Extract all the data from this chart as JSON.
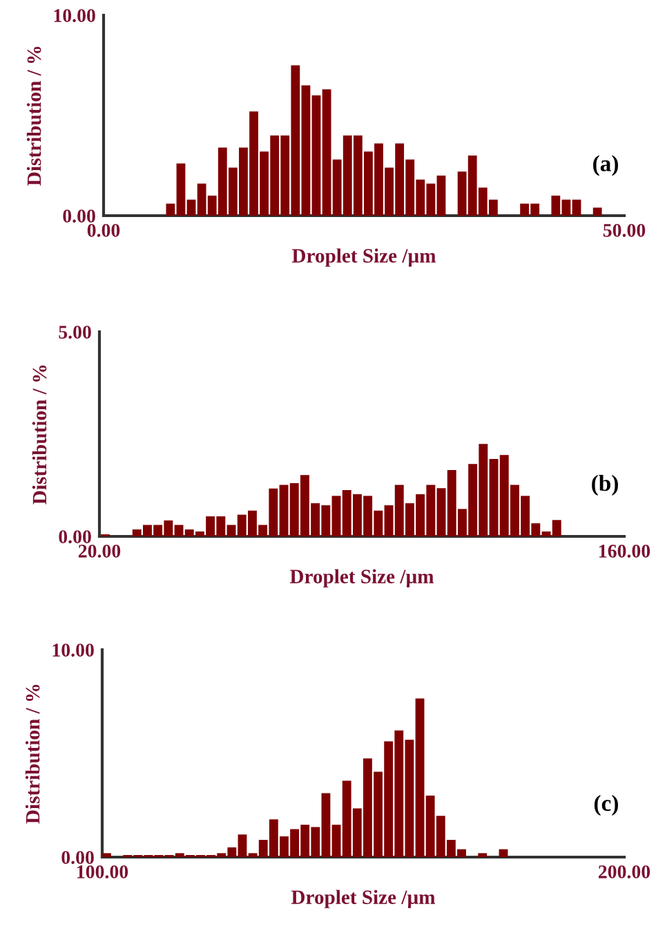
{
  "chart_data": [
    {
      "type": "histogram",
      "xlabel": "Droplet Size /µm",
      "ylabel": "Distribution / %",
      "annotations": [
        "(a)"
      ],
      "color": "#7f0000",
      "bins": [
        6,
        7,
        8,
        9,
        10,
        11,
        12,
        13,
        14,
        15,
        16,
        17,
        18,
        19,
        20,
        21,
        22,
        23,
        24,
        25,
        26,
        27,
        28,
        29,
        30,
        31,
        32,
        33,
        34,
        35,
        36,
        37,
        38,
        39,
        40,
        41,
        42,
        43,
        44,
        45,
        46,
        47,
        48
      ],
      "values": [
        0.6,
        2.6,
        0.8,
        1.6,
        1.0,
        3.4,
        2.4,
        3.4,
        5.2,
        3.2,
        4.0,
        4.0,
        7.5,
        6.5,
        6.0,
        6.3,
        2.8,
        4.0,
        4.0,
        3.2,
        3.6,
        2.4,
        3.6,
        2.8,
        1.8,
        1.6,
        2.0,
        0,
        2.2,
        3.0,
        1.4,
        0.8,
        0,
        0,
        0.6,
        0.6,
        0,
        1.0,
        0.8,
        0.8,
        0,
        0.4
      ],
      "xlim": [
        0,
        50
      ],
      "xticks": [
        {
          "value": 0,
          "label": "0.00"
        },
        {
          "value": 50,
          "label": "50.00"
        }
      ],
      "ylim": [
        0,
        10
      ],
      "yticks": [
        {
          "value": 0,
          "label": "0.00"
        },
        {
          "value": 10,
          "label": "10.00"
        }
      ],
      "grid": false,
      "legend": false
    },
    {
      "type": "histogram",
      "xlabel": "Droplet Size /µm",
      "ylabel": "Distribution / %",
      "annotations": [
        "(b)"
      ],
      "color": "#7f0000",
      "bins": [
        20.4,
        23.2,
        26.0,
        28.8,
        31.6,
        34.4,
        37.2,
        40.0,
        42.8,
        45.6,
        48.4,
        51.2,
        54.0,
        56.8,
        59.6,
        62.4,
        65.2,
        68.0,
        70.8,
        73.6,
        76.4,
        79.2,
        82.0,
        84.8,
        87.6,
        90.4,
        93.2,
        96.0,
        98.8,
        101.6,
        104.4,
        107.2,
        110.0,
        112.8,
        115.6,
        118.4,
        121.2,
        124.0,
        126.8,
        129.6,
        132.4,
        135.2,
        138.0,
        140.8,
        143.6
      ],
      "values": [
        0.05,
        0,
        0,
        0.17,
        0.28,
        0.28,
        0.39,
        0.28,
        0.17,
        0.12,
        0.49,
        0.49,
        0.28,
        0.53,
        0.63,
        0.28,
        1.17,
        1.26,
        1.3,
        1.5,
        0.81,
        0.76,
        0.99,
        1.13,
        1.03,
        0.99,
        0.63,
        0.76,
        1.26,
        0.81,
        1.03,
        1.26,
        1.18,
        1.62,
        0.67,
        1.77,
        2.26,
        1.89,
        1.99,
        1.26,
        0.99,
        0.32,
        0.12,
        0.4
      ],
      "xlim": [
        20,
        160
      ],
      "xticks": [
        {
          "value": 20,
          "label": "20.00"
        },
        {
          "value": 160,
          "label": "160.00"
        }
      ],
      "ylim": [
        0,
        5
      ],
      "yticks": [
        {
          "value": 0,
          "label": "0.00"
        },
        {
          "value": 5,
          "label": "5.00"
        }
      ],
      "grid": false,
      "legend": false
    },
    {
      "type": "histogram",
      "xlabel": "Droplet Size /µm",
      "ylabel": "Distribution / %",
      "annotations": [
        "(c)"
      ],
      "color": "#7f0000",
      "bins": [
        100,
        102,
        104,
        106,
        108,
        110,
        112,
        114,
        116,
        118,
        120,
        122,
        124,
        126,
        128,
        130,
        132,
        134,
        136,
        138,
        140,
        142,
        144,
        146,
        148,
        150,
        152,
        154,
        156,
        158,
        160,
        162,
        164,
        166,
        168,
        170,
        172,
        174,
        176,
        178
      ],
      "values": [
        0.19,
        0,
        0.1,
        0.1,
        0.1,
        0.1,
        0.1,
        0.19,
        0.1,
        0.1,
        0.1,
        0.19,
        0.47,
        1.09,
        0.19,
        0.83,
        1.82,
        1.0,
        1.35,
        1.56,
        1.45,
        3.08,
        1.56,
        3.68,
        2.35,
        4.76,
        4.12,
        5.58,
        6.11,
        5.66,
        7.65,
        2.97,
        1.99,
        0.83,
        0.38,
        0,
        0.19,
        0,
        0.38
      ],
      "xlim": [
        100,
        200
      ],
      "xticks": [
        {
          "value": 100,
          "label": "100.00"
        },
        {
          "value": 200,
          "label": "200.00"
        }
      ],
      "ylim": [
        0,
        10
      ],
      "yticks": [
        {
          "value": 0,
          "label": "0.00"
        },
        {
          "value": 10,
          "label": "10.00"
        }
      ],
      "grid": false,
      "legend": false
    }
  ]
}
